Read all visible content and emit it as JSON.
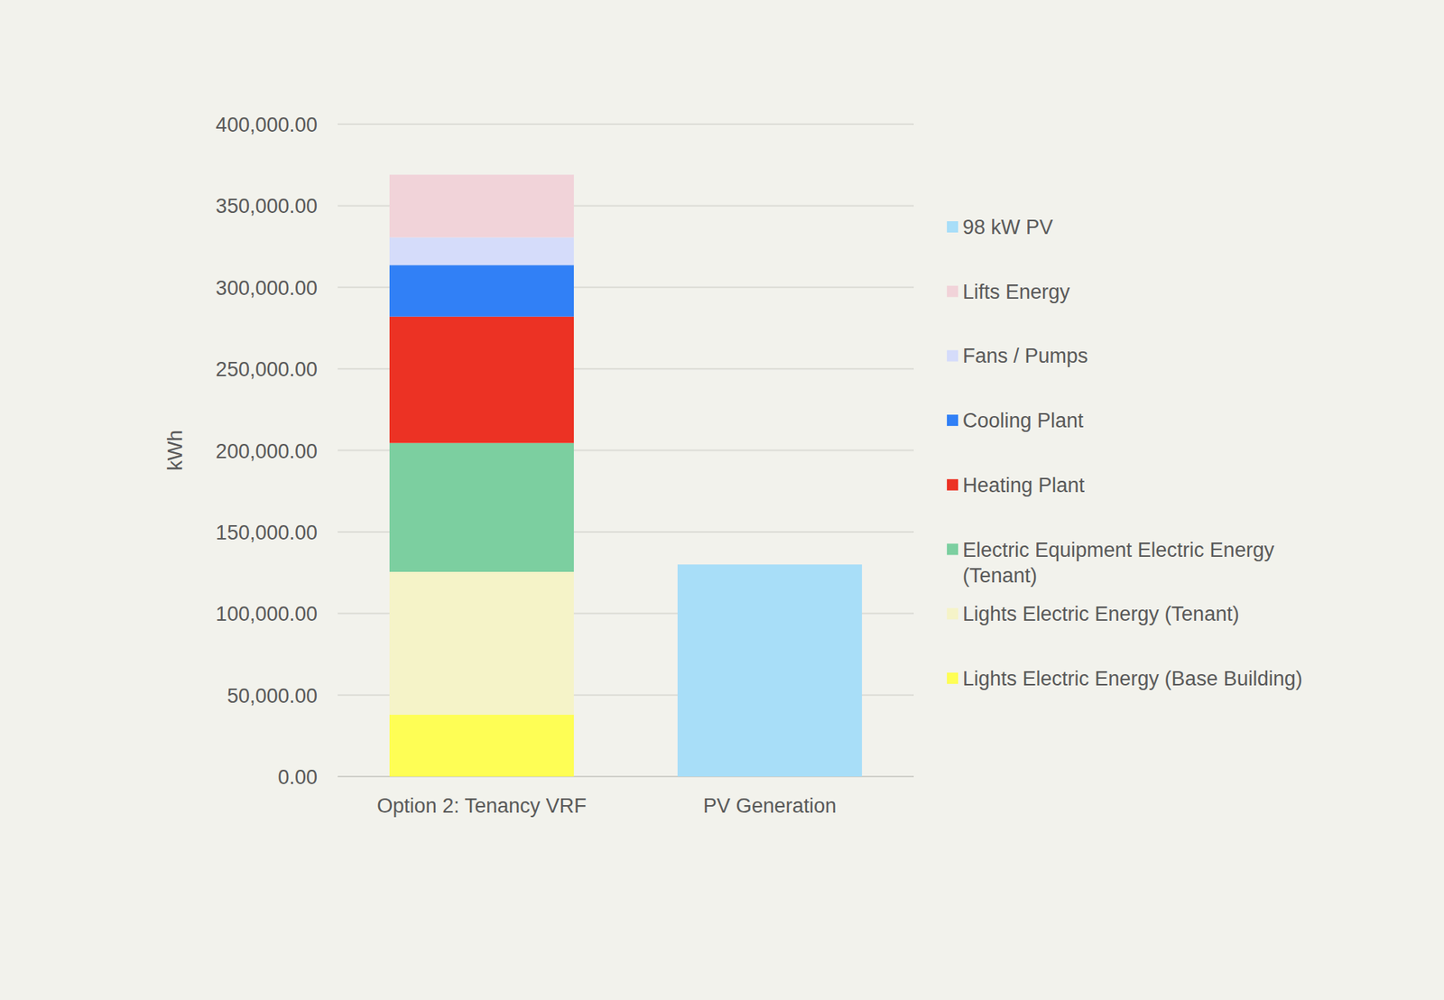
{
  "chart_data": {
    "type": "bar",
    "stacked": true,
    "grid": true,
    "legend": "right",
    "y_label": "kWh",
    "categories": [
      "Option 2: Tenancy VRF",
      "PV Generation"
    ],
    "ylim": [
      0,
      400000
    ],
    "yticks": [
      {
        "value": 0,
        "label": "0.00"
      },
      {
        "value": 50000,
        "label": "50,000.00"
      },
      {
        "value": 100000,
        "label": "100,000.00"
      },
      {
        "value": 150000,
        "label": "150,000.00"
      },
      {
        "value": 200000,
        "label": "200,000.00"
      },
      {
        "value": 250000,
        "label": "250,000.00"
      },
      {
        "value": 300000,
        "label": "300,000.00"
      },
      {
        "value": 350000,
        "label": "350,000.00"
      },
      {
        "value": 400000,
        "label": "400,000.00"
      }
    ],
    "series": [
      {
        "name": "Lights Electric Energy (Base Building)",
        "color": "#fefe55",
        "values": [
          38000,
          null
        ]
      },
      {
        "name": "Lights Electric Energy (Tenant)",
        "color": "#f5f3c8",
        "values": [
          87500,
          null
        ]
      },
      {
        "name": "Electric Equipment Electric Energy (Tenant)",
        "color": "#7ccfa0",
        "values": [
          79000,
          null
        ]
      },
      {
        "name": "Heating Plant",
        "color": "#ec3224",
        "values": [
          77500,
          null
        ]
      },
      {
        "name": "Cooling Plant",
        "color": "#3180f6",
        "values": [
          31600,
          null
        ]
      },
      {
        "name": "Fans / Pumps",
        "color": "#d5dcfa",
        "values": [
          17000,
          null
        ]
      },
      {
        "name": "Lifts Energy",
        "color": "#f1d3d9",
        "values": [
          38400,
          null
        ]
      },
      {
        "name": "98 kW PV",
        "color": "#a8def8",
        "values": [
          null,
          130000
        ]
      }
    ]
  }
}
